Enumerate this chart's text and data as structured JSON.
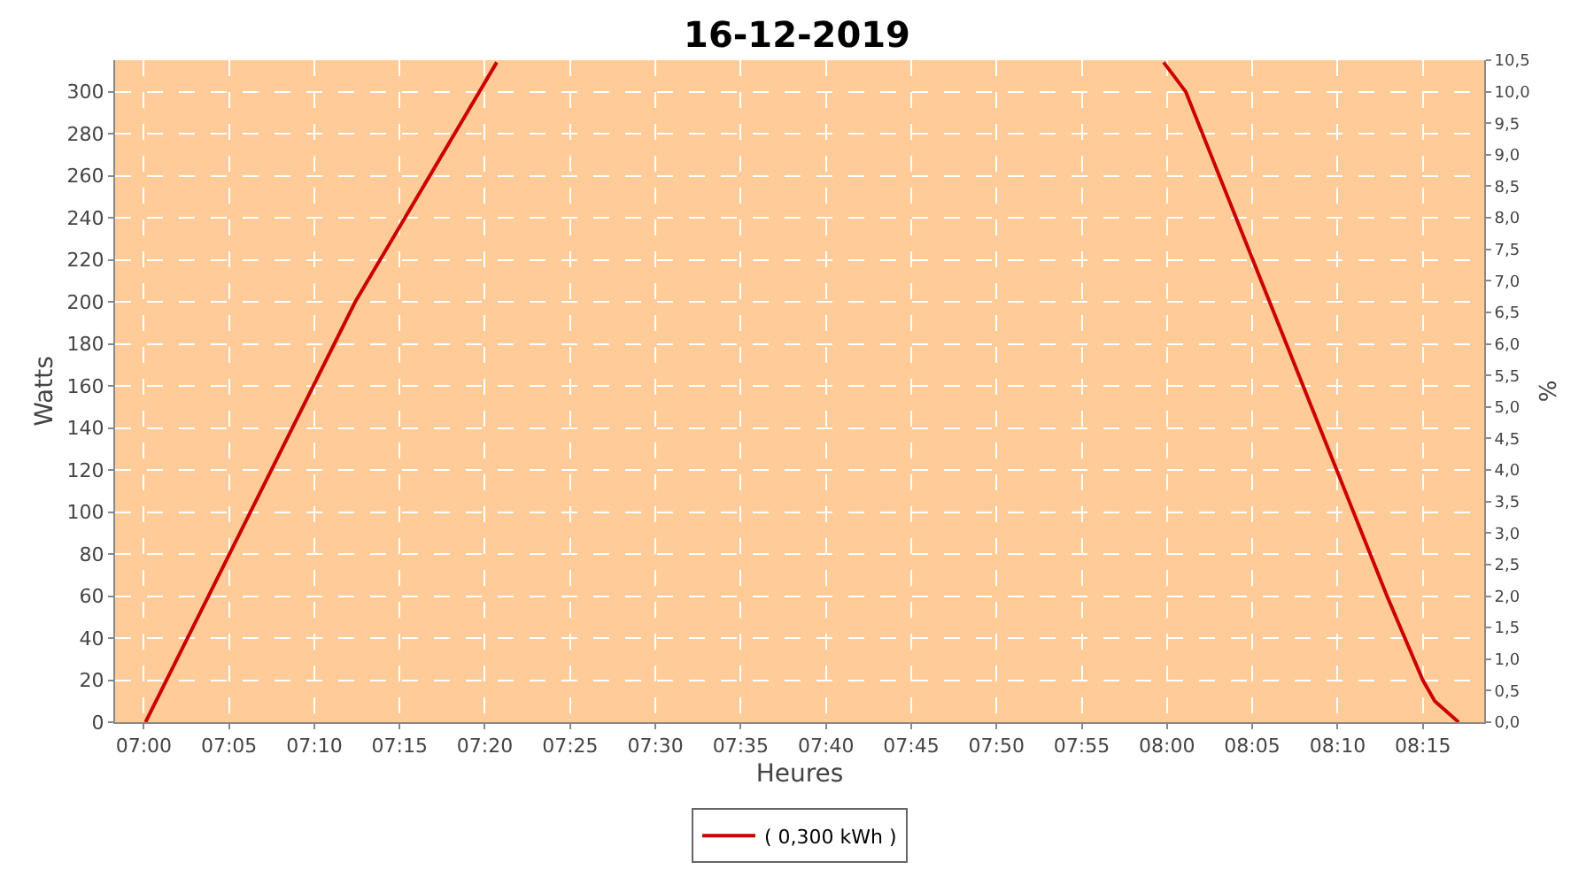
{
  "chart_data": {
    "type": "line",
    "title": "16-12-2019",
    "xlabel": "Heures",
    "ylabel": "Watts",
    "y2label": "%",
    "x": [
      7.0017,
      7.2067,
      7.345,
      7.6,
      7.9967,
      8.0183,
      8.215,
      8.25,
      8.2617,
      8.285
    ],
    "series": [
      {
        "name": "( 0,300 kWh )",
        "color": "#cc0000",
        "values": [
          0,
          200,
          314,
          null,
          314,
          300,
          60,
          20,
          10,
          0
        ]
      }
    ],
    "xlim": [
      6.972,
      8.31
    ],
    "xticks": [
      {
        "value": 7.0,
        "label": "07:00"
      },
      {
        "value": 7.0833,
        "label": "07:05"
      },
      {
        "value": 7.1667,
        "label": "07:10"
      },
      {
        "value": 7.25,
        "label": "07:15"
      },
      {
        "value": 7.3333,
        "label": "07:20"
      },
      {
        "value": 7.4167,
        "label": "07:25"
      },
      {
        "value": 7.5,
        "label": "07:30"
      },
      {
        "value": 7.5833,
        "label": "07:35"
      },
      {
        "value": 7.6667,
        "label": "07:40"
      },
      {
        "value": 7.75,
        "label": "07:45"
      },
      {
        "value": 7.8333,
        "label": "07:50"
      },
      {
        "value": 7.9167,
        "label": "07:55"
      },
      {
        "value": 8.0,
        "label": "08:00"
      },
      {
        "value": 8.0833,
        "label": "08:05"
      },
      {
        "value": 8.1667,
        "label": "08:10"
      },
      {
        "value": 8.25,
        "label": "08:15"
      }
    ],
    "ylim": [
      0,
      315
    ],
    "yticks": [
      0,
      20,
      40,
      60,
      80,
      100,
      120,
      140,
      160,
      180,
      200,
      220,
      240,
      260,
      280,
      300
    ],
    "y2lim": [
      0,
      10.5
    ],
    "y2ticks": [
      {
        "value": 0,
        "label": "0,0"
      },
      {
        "value": 0.5,
        "label": "0,5"
      },
      {
        "value": 1,
        "label": "1,0"
      },
      {
        "value": 1.5,
        "label": "1,5"
      },
      {
        "value": 2,
        "label": "2,0"
      },
      {
        "value": 2.5,
        "label": "2,5"
      },
      {
        "value": 3,
        "label": "3,0"
      },
      {
        "value": 3.5,
        "label": "3,5"
      },
      {
        "value": 4,
        "label": "4,0"
      },
      {
        "value": 4.5,
        "label": "4,5"
      },
      {
        "value": 5,
        "label": "5,0"
      },
      {
        "value": 5.5,
        "label": "5,5"
      },
      {
        "value": 6,
        "label": "6,0"
      },
      {
        "value": 6.5,
        "label": "6,5"
      },
      {
        "value": 7,
        "label": "7,0"
      },
      {
        "value": 7.5,
        "label": "7,5"
      },
      {
        "value": 8,
        "label": "8,0"
      },
      {
        "value": 8.5,
        "label": "8,5"
      },
      {
        "value": 9,
        "label": "9,0"
      },
      {
        "value": 9.5,
        "label": "9,5"
      },
      {
        "value": 10,
        "label": "10,0"
      },
      {
        "value": 10.5,
        "label": "10,5"
      }
    ],
    "grid": true,
    "legend": "bottom",
    "marker": "none",
    "line_style": "solid"
  }
}
